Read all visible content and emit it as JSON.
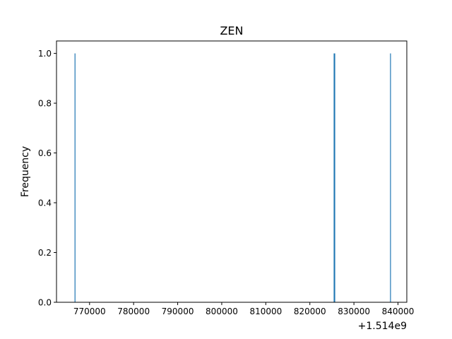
{
  "chart_data": {
    "type": "bar",
    "title": "ZEN",
    "xlabel": "",
    "ylabel": "Frequency",
    "x_offset_label": "+1.514e9",
    "xlim": [
      762500,
      842000
    ],
    "ylim": [
      0,
      1.05
    ],
    "xticks": [
      770000,
      780000,
      790000,
      800000,
      810000,
      820000,
      830000,
      840000
    ],
    "xtick_labels": [
      "770000",
      "780000",
      "790000",
      "800000",
      "810000",
      "820000",
      "830000",
      "840000"
    ],
    "yticks": [
      0,
      0.2,
      0.4,
      0.6,
      0.8,
      1.0
    ],
    "ytick_labels": [
      "0.0",
      "0.2",
      "0.4",
      "0.6",
      "0.8",
      "1.0"
    ],
    "grid": false,
    "bar_color": "#1f77b4",
    "bars": [
      {
        "x": 766700,
        "value": 1
      },
      {
        "x": 825500,
        "value": 1
      },
      {
        "x": 825650,
        "value": 1
      },
      {
        "x": 838300,
        "value": 1
      }
    ]
  }
}
